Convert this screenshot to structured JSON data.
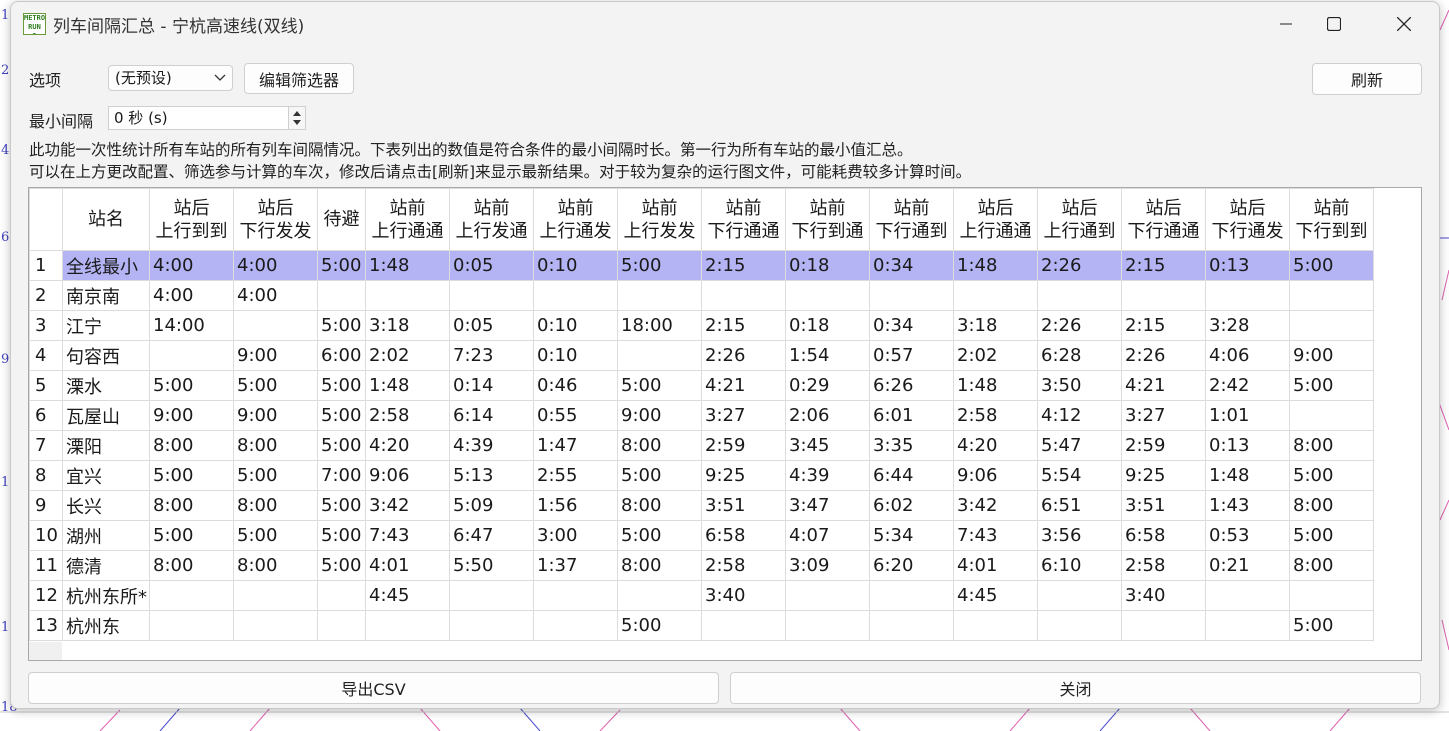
{
  "window": {
    "title": "列车间隔汇总 - 宁杭高速线(双线)",
    "logo_text": "METRO RUN 2"
  },
  "options": {
    "label": "选项",
    "preset_value": "(无预设)",
    "edit_filter_label": "编辑筛选器",
    "refresh_label": "刷新"
  },
  "min_interval": {
    "label": "最小间隔",
    "value": "0 秒 (s)"
  },
  "description": [
    "此功能一次性统计所有车站的所有列车间隔情况。下表列出的数值是符合条件的最小间隔时长。第一行为所有车站的最小值汇总。",
    "可以在上方更改配置、筛选参与计算的车次，修改后请点击[刷新]来显示最新结果。对于较为复杂的运行图文件，可能耗费较多计算时间。"
  ],
  "table": {
    "headers": [
      [
        "站名"
      ],
      [
        "站后",
        "上行到到"
      ],
      [
        "站后",
        "下行发发"
      ],
      [
        "待避"
      ],
      [
        "站前",
        "上行通通"
      ],
      [
        "站前",
        "上行发通"
      ],
      [
        "站前",
        "上行通发"
      ],
      [
        "站前",
        "上行发发"
      ],
      [
        "站前",
        "下行通通"
      ],
      [
        "站前",
        "下行到通"
      ],
      [
        "站前",
        "下行通到"
      ],
      [
        "站后",
        "上行通通"
      ],
      [
        "站后",
        "上行通到"
      ],
      [
        "站后",
        "下行通通"
      ],
      [
        "站后",
        "下行通发"
      ],
      [
        "站前",
        "下行到到"
      ]
    ],
    "rows": [
      {
        "n": "1",
        "cells": [
          "全线最小",
          "4:00",
          "4:00",
          "5:00",
          "1:48",
          "0:05",
          "0:10",
          "5:00",
          "2:15",
          "0:18",
          "0:34",
          "1:48",
          "2:26",
          "2:15",
          "0:13",
          "5:00"
        ]
      },
      {
        "n": "2",
        "cells": [
          "南京南",
          "4:00",
          "4:00",
          "",
          "",
          "",
          "",
          "",
          "",
          "",
          "",
          "",
          "",
          "",
          "",
          ""
        ]
      },
      {
        "n": "3",
        "cells": [
          "江宁",
          "14:00",
          "",
          "5:00",
          "3:18",
          "0:05",
          "0:10",
          "18:00",
          "2:15",
          "0:18",
          "0:34",
          "3:18",
          "2:26",
          "2:15",
          "3:28",
          ""
        ]
      },
      {
        "n": "4",
        "cells": [
          "句容西",
          "",
          "9:00",
          "6:00",
          "2:02",
          "7:23",
          "0:10",
          "",
          "2:26",
          "1:54",
          "0:57",
          "2:02",
          "6:28",
          "2:26",
          "4:06",
          "9:00"
        ]
      },
      {
        "n": "5",
        "cells": [
          "溧水",
          "5:00",
          "5:00",
          "5:00",
          "1:48",
          "0:14",
          "0:46",
          "5:00",
          "4:21",
          "0:29",
          "6:26",
          "1:48",
          "3:50",
          "4:21",
          "2:42",
          "5:00"
        ]
      },
      {
        "n": "6",
        "cells": [
          "瓦屋山",
          "9:00",
          "9:00",
          "5:00",
          "2:58",
          "6:14",
          "0:55",
          "9:00",
          "3:27",
          "2:06",
          "6:01",
          "2:58",
          "4:12",
          "3:27",
          "1:01",
          ""
        ]
      },
      {
        "n": "7",
        "cells": [
          "溧阳",
          "8:00",
          "8:00",
          "5:00",
          "4:20",
          "4:39",
          "1:47",
          "8:00",
          "2:59",
          "3:45",
          "3:35",
          "4:20",
          "5:47",
          "2:59",
          "0:13",
          "8:00"
        ]
      },
      {
        "n": "8",
        "cells": [
          "宜兴",
          "5:00",
          "5:00",
          "7:00",
          "9:06",
          "5:13",
          "2:55",
          "5:00",
          "9:25",
          "4:39",
          "6:44",
          "9:06",
          "5:54",
          "9:25",
          "1:48",
          "5:00"
        ]
      },
      {
        "n": "9",
        "cells": [
          "长兴",
          "8:00",
          "8:00",
          "5:00",
          "3:42",
          "5:09",
          "1:56",
          "8:00",
          "3:51",
          "3:47",
          "6:02",
          "3:42",
          "6:51",
          "3:51",
          "1:43",
          "8:00"
        ]
      },
      {
        "n": "10",
        "cells": [
          "湖州",
          "5:00",
          "5:00",
          "5:00",
          "7:43",
          "6:47",
          "3:00",
          "5:00",
          "6:58",
          "4:07",
          "5:34",
          "7:43",
          "3:56",
          "6:58",
          "0:53",
          "5:00"
        ]
      },
      {
        "n": "11",
        "cells": [
          "德清",
          "8:00",
          "8:00",
          "5:00",
          "4:01",
          "5:50",
          "1:37",
          "8:00",
          "2:58",
          "3:09",
          "6:20",
          "4:01",
          "6:10",
          "2:58",
          "0:21",
          "8:00"
        ]
      },
      {
        "n": "12",
        "cells": [
          "杭州东所*",
          "",
          "",
          "",
          "4:45",
          "",
          "",
          "",
          "3:40",
          "",
          "",
          "4:45",
          "",
          "3:40",
          "",
          ""
        ]
      },
      {
        "n": "13",
        "cells": [
          "杭州东",
          "",
          "",
          "",
          "",
          "",
          "",
          "5:00",
          "",
          "",
          "",
          "",
          "",
          "",
          "",
          "5:00"
        ]
      }
    ],
    "selected_row": 0
  },
  "footer": {
    "export_label": "导出CSV",
    "close_label": "关闭"
  },
  "background_numbers": [
    "1",
    "2",
    "4",
    "6",
    "9",
    "12",
    "16",
    "18"
  ],
  "colors": {
    "selected_row": "#b4b4f5",
    "graph_line_blue": "#4a4ad0",
    "graph_line_pink": "#e060b0"
  }
}
